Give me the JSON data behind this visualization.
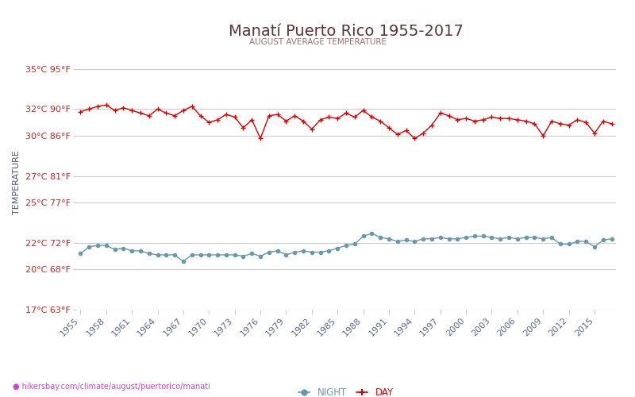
{
  "title": "Manatí Puerto Rico 1955-2017",
  "subtitle": "AUGUST AVERAGE TEMPERATURE",
  "ylabel": "TEMPERATURE",
  "website": "hikersbay.com/climate/august/puertorico/manati",
  "years": [
    1955,
    1956,
    1957,
    1958,
    1959,
    1960,
    1961,
    1962,
    1963,
    1964,
    1965,
    1966,
    1967,
    1968,
    1969,
    1970,
    1971,
    1972,
    1973,
    1974,
    1975,
    1976,
    1977,
    1978,
    1979,
    1980,
    1981,
    1982,
    1983,
    1984,
    1985,
    1986,
    1987,
    1988,
    1989,
    1990,
    1991,
    1992,
    1993,
    1994,
    1995,
    1996,
    1997,
    1998,
    1999,
    2000,
    2001,
    2002,
    2003,
    2004,
    2005,
    2006,
    2007,
    2008,
    2009,
    2010,
    2011,
    2012,
    2013,
    2014,
    2015,
    2016,
    2017
  ],
  "day_temps": [
    31.8,
    32.0,
    32.2,
    32.3,
    31.9,
    32.1,
    31.9,
    31.7,
    31.5,
    32.0,
    31.7,
    31.5,
    31.9,
    32.2,
    31.5,
    31.0,
    31.2,
    31.6,
    31.4,
    30.6,
    31.2,
    29.8,
    31.5,
    31.6,
    31.1,
    31.5,
    31.1,
    30.5,
    31.2,
    31.4,
    31.3,
    31.7,
    31.4,
    31.9,
    31.4,
    31.1,
    30.6,
    30.1,
    30.4,
    29.8,
    30.2,
    30.8,
    31.7,
    31.5,
    31.2,
    31.3,
    31.1,
    31.2,
    31.4,
    31.3,
    31.3,
    31.2,
    31.1,
    30.9,
    30.0,
    31.1,
    30.9,
    30.8,
    31.2,
    31.0,
    30.2,
    31.1,
    30.9
  ],
  "night_temps": [
    21.2,
    21.7,
    21.8,
    21.8,
    21.5,
    21.6,
    21.4,
    21.4,
    21.2,
    21.1,
    21.1,
    21.1,
    20.6,
    21.1,
    21.1,
    21.1,
    21.1,
    21.1,
    21.1,
    21.0,
    21.2,
    21.0,
    21.3,
    21.4,
    21.1,
    21.3,
    21.4,
    21.3,
    21.3,
    21.4,
    21.6,
    21.8,
    21.9,
    22.5,
    22.7,
    22.4,
    22.3,
    22.1,
    22.2,
    22.1,
    22.3,
    22.3,
    22.4,
    22.3,
    22.3,
    22.4,
    22.5,
    22.5,
    22.4,
    22.3,
    22.4,
    22.3,
    22.4,
    22.4,
    22.3,
    22.4,
    21.9,
    21.9,
    22.1,
    22.1,
    21.7,
    22.2,
    22.3
  ],
  "day_color": "#dd0000",
  "night_color": "#6699aa",
  "title_color": "#5a3535",
  "subtitle_color": "#9a7070",
  "ylabel_color": "#4a5a7a",
  "ytick_color": "#cc2222",
  "xtick_color": "#5a6a8a",
  "grid_color": "#cccccc",
  "bg_color": "#ffffff",
  "website_color": "#cc44cc",
  "pin_color": "#ffaa00",
  "ytick_labels_c": [
    "35°C 95°F",
    "32°C 90°F",
    "30°C 86°F",
    "27°C 81°F",
    "25°C 77°F",
    "22°C 72°F",
    "20°C 68°F",
    "17°C 63°F"
  ],
  "ytick_vals": [
    35,
    32,
    30,
    27,
    25,
    22,
    20,
    17
  ],
  "xtick_years": [
    1955,
    1958,
    1961,
    1964,
    1967,
    1970,
    1973,
    1976,
    1979,
    1982,
    1985,
    1988,
    1991,
    1994,
    1997,
    2000,
    2003,
    2006,
    2009,
    2012,
    2015
  ],
  "xlim": [
    1954.5,
    2017.5
  ],
  "ylim": [
    17,
    36
  ]
}
